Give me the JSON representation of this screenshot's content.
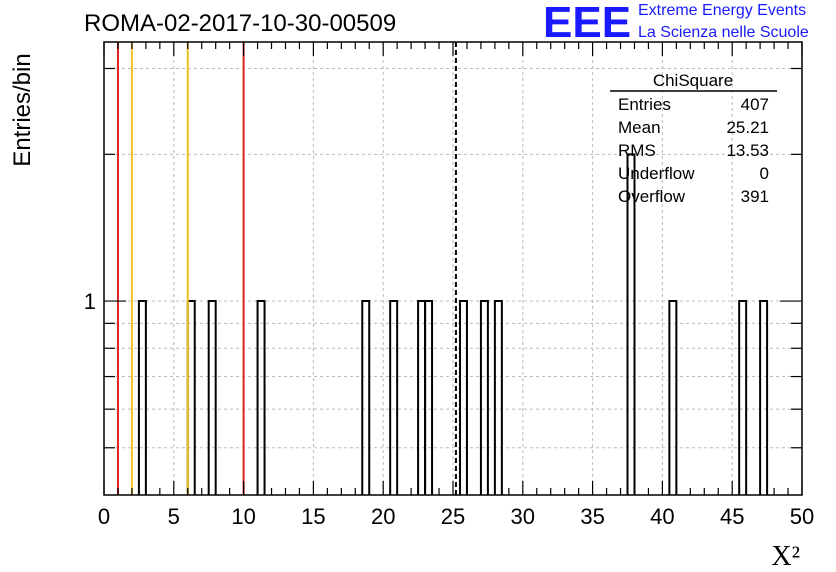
{
  "title": "ROMA-02-2017-10-30-00509",
  "logo": {
    "mark": "EEE",
    "line1": "Extreme Energy Events",
    "line2": "La Scienza nelle Scuole"
  },
  "stats_box": {
    "header": "ChiSquare",
    "rows": [
      {
        "label": "Entries",
        "value": "407"
      },
      {
        "label": "Mean",
        "value": "25.21"
      },
      {
        "label": "RMS",
        "value": "13.53"
      },
      {
        "label": "Underflow",
        "value": "0"
      },
      {
        "label": "Overflow",
        "value": "391"
      }
    ]
  },
  "colors": {
    "red_line": "#dd2222",
    "yellow_line": "#f0c020",
    "grid": "#bbbbbb",
    "logo": "#1a1aff"
  },
  "chart_data": {
    "type": "histogram",
    "title": "ROMA-02-2017-10-30-00509",
    "xlabel": "X²",
    "ylabel": "Entries/bin",
    "xlim": [
      0,
      50
    ],
    "bin_width": 0.5,
    "y_scale": "log",
    "ylim": [
      0.4,
      3.4
    ],
    "x_ticks": [
      0,
      5,
      10,
      15,
      20,
      25,
      30,
      35,
      40,
      45,
      50
    ],
    "y_ticks": [
      1
    ],
    "grid": true,
    "bins": [
      {
        "x": 2.5,
        "count": 1
      },
      {
        "x": 6.0,
        "count": 1
      },
      {
        "x": 7.5,
        "count": 1
      },
      {
        "x": 11.0,
        "count": 1
      },
      {
        "x": 18.5,
        "count": 1
      },
      {
        "x": 20.5,
        "count": 1
      },
      {
        "x": 22.5,
        "count": 1
      },
      {
        "x": 23.0,
        "count": 1
      },
      {
        "x": 25.5,
        "count": 1
      },
      {
        "x": 27.0,
        "count": 1
      },
      {
        "x": 28.0,
        "count": 1
      },
      {
        "x": 37.5,
        "count": 2
      },
      {
        "x": 40.5,
        "count": 1
      },
      {
        "x": 45.5,
        "count": 1
      },
      {
        "x": 47.0,
        "count": 1
      }
    ],
    "vertical_lines": [
      {
        "x": 1.0,
        "color": "red",
        "style": "solid"
      },
      {
        "x": 2.0,
        "color": "yellow",
        "style": "solid"
      },
      {
        "x": 6.0,
        "color": "yellow",
        "style": "solid"
      },
      {
        "x": 10.0,
        "color": "red",
        "style": "solid"
      },
      {
        "x": 25.21,
        "color": "black",
        "style": "dashed"
      }
    ]
  }
}
